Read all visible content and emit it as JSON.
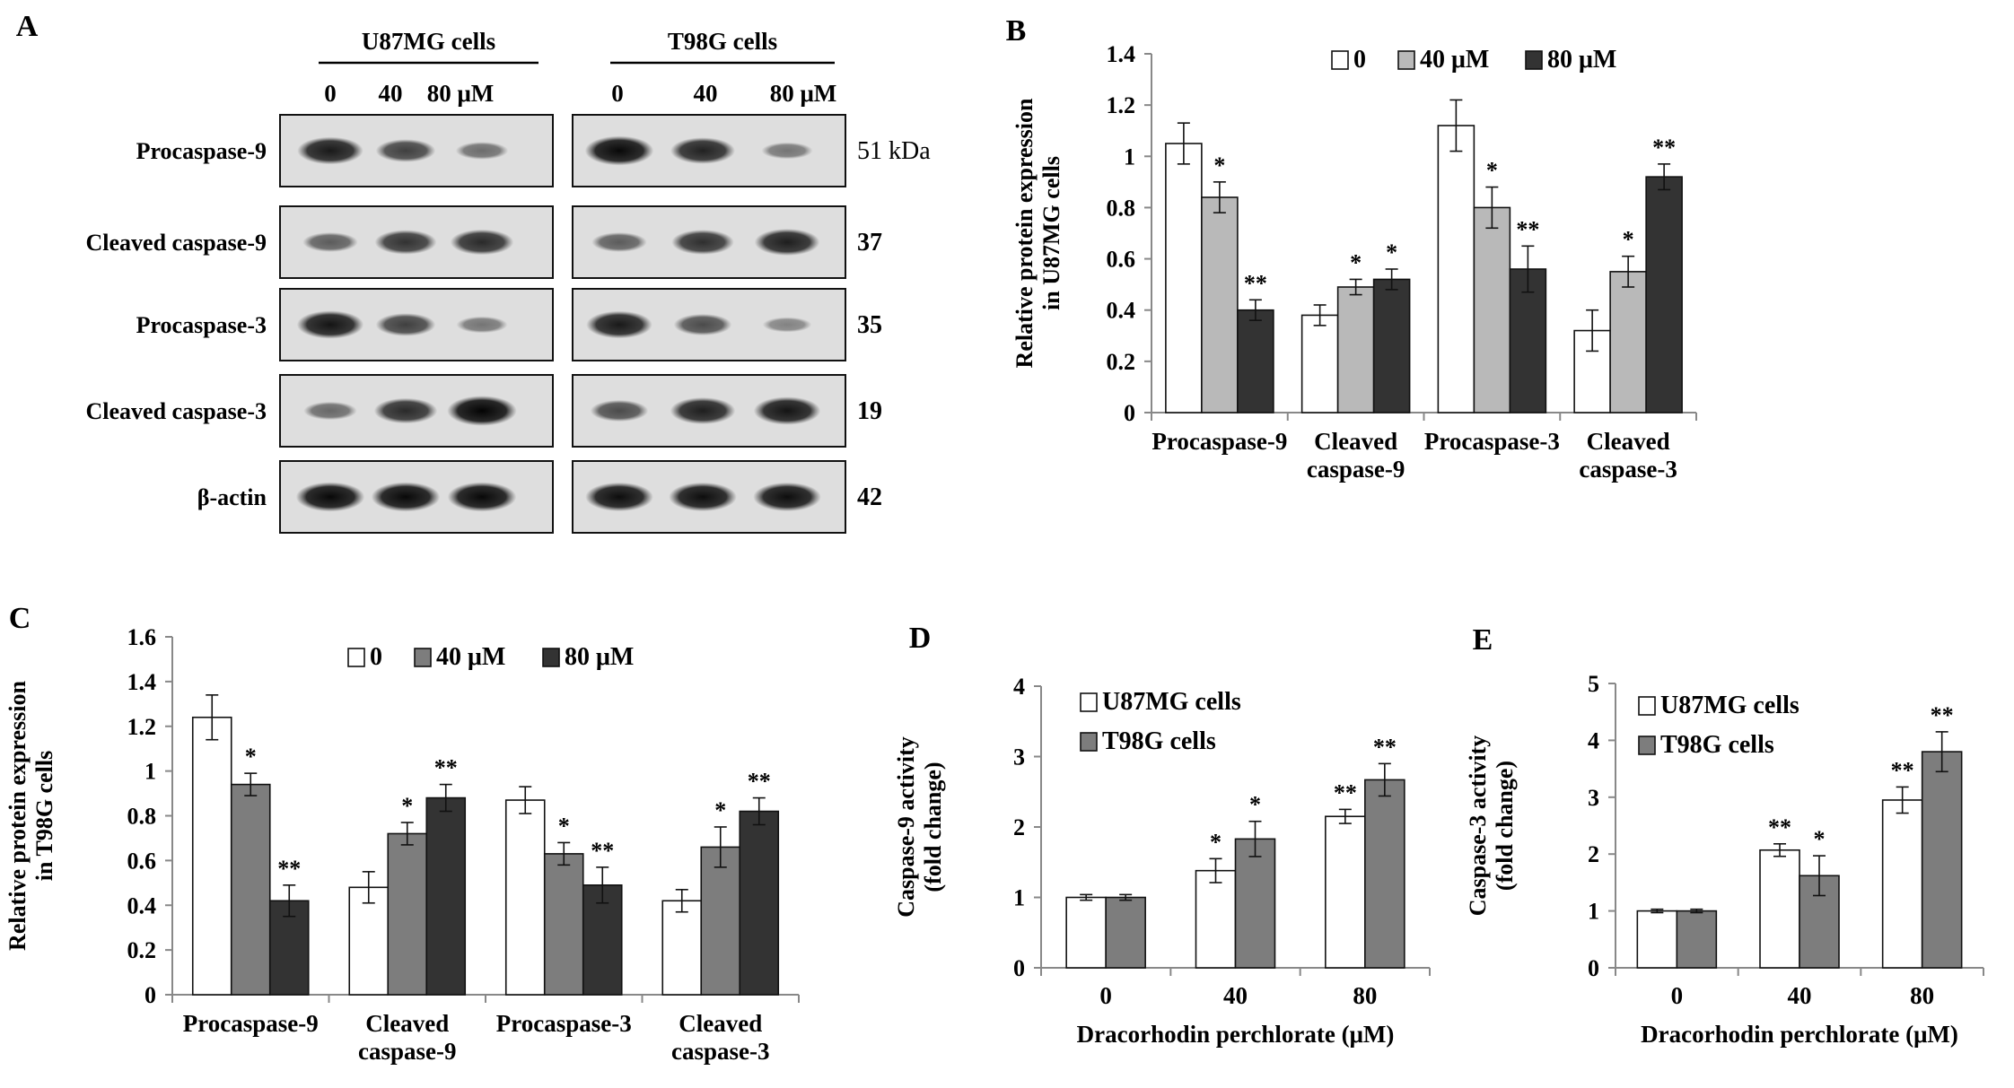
{
  "panel_letters": {
    "a": "A",
    "b": "B",
    "c": "C",
    "d": "D",
    "e": "E"
  },
  "blot": {
    "groups": [
      "U87MG cells",
      "T98G cells"
    ],
    "lane_labels": [
      [
        "0",
        "40",
        "80 μM"
      ],
      [
        "0",
        "40",
        "80 μM"
      ]
    ],
    "rows": [
      {
        "label": "Procaspase-9",
        "kda": "51 kDa",
        "intensities": [
          [
            0.85,
            0.62,
            0.35
          ],
          [
            0.95,
            0.8,
            0.3
          ]
        ]
      },
      {
        "label": "Cleaved caspase-9",
        "kda": "37",
        "intensities": [
          [
            0.45,
            0.7,
            0.75
          ],
          [
            0.45,
            0.72,
            0.82
          ]
        ]
      },
      {
        "label": "Procaspase-3",
        "kda": "35",
        "intensities": [
          [
            0.88,
            0.62,
            0.3
          ],
          [
            0.85,
            0.55,
            0.22
          ]
        ]
      },
      {
        "label": "Cleaved caspase-3",
        "kda": "19",
        "intensities": [
          [
            0.38,
            0.75,
            0.98
          ],
          [
            0.55,
            0.82,
            0.88
          ]
        ]
      },
      {
        "label": "β-actin",
        "kda": "42",
        "intensities": [
          [
            0.95,
            0.95,
            0.95
          ],
          [
            0.92,
            0.92,
            0.92
          ]
        ]
      }
    ]
  },
  "colors": {
    "white_bar": "#ffffff",
    "light_gray": "#b9b9b9",
    "mid_gray": "#7d7d7d",
    "dark_gray": "#333333",
    "axis": "#888888",
    "ink": "#000000"
  },
  "chart_data": [
    {
      "panel": "B",
      "type": "bar",
      "ylabel": "Relative protein expression in U87MG cells",
      "ylabel_lines": [
        "Relative protein expression",
        "in U87MG cells"
      ],
      "ylim": [
        0,
        1.4
      ],
      "yticks": [
        "0",
        "0.2",
        "0.4",
        "0.6",
        "0.8",
        "1",
        "1.2",
        "1.4"
      ],
      "categories": [
        [
          "Procaspase-9"
        ],
        [
          "Cleaved",
          "caspase-9"
        ],
        [
          "Procaspase-3"
        ],
        [
          "Cleaved",
          "caspase-3"
        ]
      ],
      "series": [
        {
          "name": "0",
          "values": [
            1.05,
            0.38,
            1.12,
            0.32
          ],
          "errors": [
            0.08,
            0.04,
            0.1,
            0.08
          ],
          "sig": [
            "",
            "",
            "",
            ""
          ]
        },
        {
          "name": "40 μM",
          "values": [
            0.84,
            0.49,
            0.8,
            0.55
          ],
          "errors": [
            0.06,
            0.03,
            0.08,
            0.06
          ],
          "sig": [
            "*",
            "*",
            "*",
            "*"
          ]
        },
        {
          "name": "80 μM",
          "values": [
            0.4,
            0.52,
            0.56,
            0.92
          ],
          "errors": [
            0.04,
            0.04,
            0.09,
            0.05
          ],
          "sig": [
            "**",
            "*",
            "**",
            "**"
          ]
        }
      ],
      "legend": "top"
    },
    {
      "panel": "C",
      "type": "bar",
      "ylabel": "Relative protein expression in T98G cells",
      "ylabel_lines": [
        "Relative protein expression",
        "in T98G cells"
      ],
      "ylim": [
        0,
        1.6
      ],
      "yticks": [
        "0",
        "0.2",
        "0.4",
        "0.6",
        "0.8",
        "1",
        "1.2",
        "1.4",
        "1.6"
      ],
      "categories": [
        [
          "Procaspase-9"
        ],
        [
          "Cleaved",
          "caspase-9"
        ],
        [
          "Procaspase-3"
        ],
        [
          "Cleaved",
          "caspase-3"
        ]
      ],
      "series": [
        {
          "name": "0",
          "values": [
            1.24,
            0.48,
            0.87,
            0.42
          ],
          "errors": [
            0.1,
            0.07,
            0.06,
            0.05
          ],
          "sig": [
            "",
            "",
            "",
            ""
          ]
        },
        {
          "name": "40 μM",
          "values": [
            0.94,
            0.72,
            0.63,
            0.66
          ],
          "errors": [
            0.05,
            0.05,
            0.05,
            0.09
          ],
          "sig": [
            "*",
            "*",
            "*",
            "*"
          ]
        },
        {
          "name": "80 μM",
          "values": [
            0.42,
            0.88,
            0.49,
            0.82
          ],
          "errors": [
            0.07,
            0.06,
            0.08,
            0.06
          ],
          "sig": [
            "**",
            "**",
            "**",
            "**"
          ]
        }
      ],
      "legend": "top"
    },
    {
      "panel": "D",
      "type": "bar",
      "xlabel": "Dracorhodin perchlorate (μM)",
      "ylabel": "Caspase-9 activity (fold change)",
      "ylabel_lines": [
        "Caspase-9 activity",
        "(fold change)"
      ],
      "ylim": [
        0,
        4
      ],
      "yticks": [
        "0",
        "1",
        "2",
        "3",
        "4"
      ],
      "categories": [
        [
          "0"
        ],
        [
          "40"
        ],
        [
          "80"
        ]
      ],
      "series": [
        {
          "name": "U87MG cells",
          "values": [
            1.0,
            1.38,
            2.15
          ],
          "errors": [
            0.04,
            0.17,
            0.1
          ],
          "sig": [
            "",
            "*",
            "**"
          ]
        },
        {
          "name": "T98G cells",
          "values": [
            1.0,
            1.83,
            2.67
          ],
          "errors": [
            0.04,
            0.25,
            0.23
          ],
          "sig": [
            "",
            "*",
            "**"
          ]
        }
      ],
      "legend": "top-left"
    },
    {
      "panel": "E",
      "type": "bar",
      "xlabel": "Dracorhodin perchlorate (μM)",
      "ylabel": "Caspase-3 activity (fold change)",
      "ylabel_lines": [
        "Caspase-3 activity",
        "(fold change)"
      ],
      "ylim": [
        0,
        5
      ],
      "yticks": [
        "0",
        "1",
        "2",
        "3",
        "4",
        "5"
      ],
      "categories": [
        [
          "0"
        ],
        [
          "40"
        ],
        [
          "80"
        ]
      ],
      "series": [
        {
          "name": "U87MG cells",
          "values": [
            1.0,
            2.07,
            2.95
          ],
          "errors": [
            0.03,
            0.11,
            0.23
          ],
          "sig": [
            "",
            "**",
            "**"
          ]
        },
        {
          "name": "T98G cells",
          "values": [
            1.0,
            1.62,
            3.8
          ],
          "errors": [
            0.03,
            0.35,
            0.35
          ],
          "sig": [
            "",
            "*",
            "**"
          ]
        }
      ],
      "legend": "top-left"
    }
  ]
}
